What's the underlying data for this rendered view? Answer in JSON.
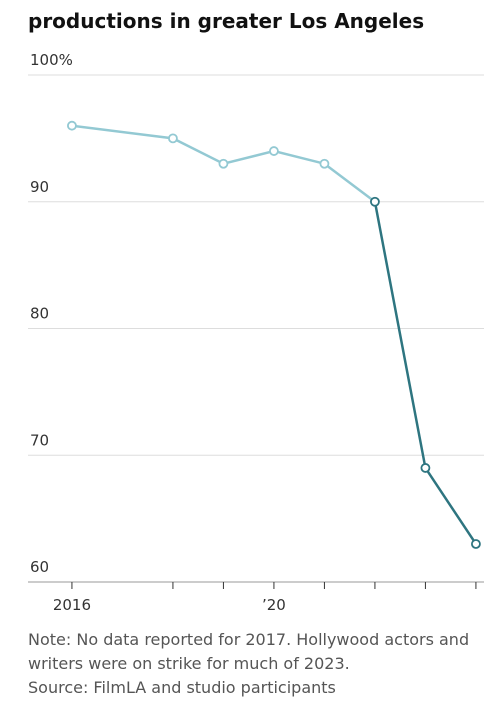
{
  "chart_data": {
    "type": "line",
    "title": "productions in greater Los Angeles",
    "x": [
      2016,
      2018,
      2019,
      2020,
      2021,
      2022,
      2023,
      2024
    ],
    "series": [
      {
        "color": "#93c9d3",
        "values": [
          96,
          95,
          93,
          94,
          93,
          90,
          69,
          63
        ]
      }
    ],
    "highlight": {
      "from": 2022,
      "color": "#2e7580"
    },
    "xlim": [
      2015.13,
      2024.16
    ],
    "xticks": [
      2016,
      {
        "value": 2020,
        "label": "’20"
      }
    ],
    "minor_xticks": [
      2018,
      2019,
      2021,
      2022,
      2023,
      2024
    ],
    "ylim": [
      60,
      100
    ],
    "yticks": [
      60,
      70,
      80,
      90,
      {
        "value": 100,
        "label": "100%"
      }
    ],
    "grid": true,
    "note": "Note: No data reported for 2017. Hollywood actors and writers were on strike for much of 2023.",
    "source": "Source: FilmLA and studio participants"
  }
}
